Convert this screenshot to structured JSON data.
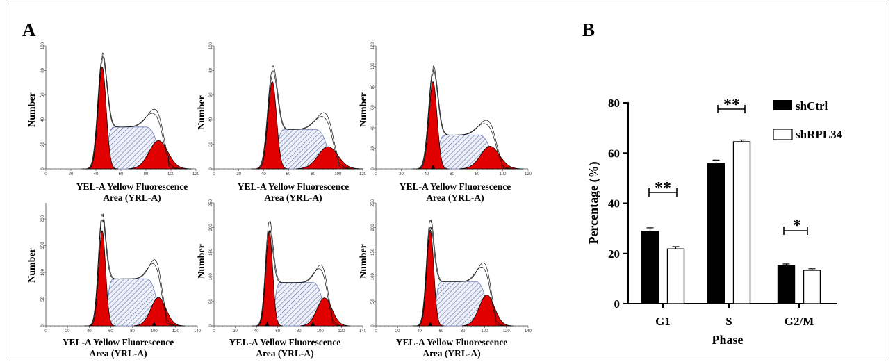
{
  "panel_a": {
    "label": "A",
    "ylabel": "Number",
    "xlabel_line1": "YEL-A Yellow Fluorescence",
    "xlabel_line2": "Area (YRL-A)",
    "histograms": [
      {
        "yticks": [
          "0",
          "20",
          "40",
          "60",
          "80",
          "100"
        ],
        "ymax": 100,
        "xticks": [
          "0",
          "20",
          "40",
          "60",
          "80",
          "100",
          "120"
        ],
        "xmax": 120,
        "g1": {
          "mu": 45,
          "sigma": 3.2,
          "h": 83
        },
        "g2": {
          "mu": 90,
          "sigma": 7.5,
          "h": 23
        },
        "s": {
          "from": 48,
          "to": 92,
          "h": 34
        },
        "traces": [
          {
            "peak": 97
          },
          {
            "peak": 100
          }
        ],
        "markers": []
      },
      {
        "yticks": [
          "0",
          "20",
          "40",
          "60",
          "80",
          "100"
        ],
        "ymax": 100,
        "xticks": [
          "0",
          "20",
          "40",
          "60",
          "80",
          "100",
          "120"
        ],
        "xmax": 120,
        "g1": {
          "mu": 47,
          "sigma": 3.4,
          "h": 71
        },
        "g2": {
          "mu": 92,
          "sigma": 8,
          "h": 18
        },
        "s": {
          "from": 50,
          "to": 94,
          "h": 32
        },
        "traces": [
          {
            "peak": 85
          },
          {
            "peak": 89
          }
        ],
        "markers": []
      },
      {
        "yticks": [
          "0",
          "20",
          "40",
          "60",
          "80",
          "100",
          "120"
        ],
        "ymax": 120,
        "xticks": [
          "0",
          "20",
          "40",
          "60",
          "80",
          "100",
          "120"
        ],
        "xmax": 120,
        "g1": {
          "mu": 45,
          "sigma": 3.2,
          "h": 85
        },
        "g2": {
          "mu": 90,
          "sigma": 7.5,
          "h": 22
        },
        "s": {
          "from": 48,
          "to": 93,
          "h": 33
        },
        "traces": [
          {
            "peak": 102
          },
          {
            "peak": 106
          }
        ],
        "markers": [
          {
            "x": 45
          }
        ]
      },
      {
        "yticks": [
          "0",
          "50",
          "100",
          "150",
          "200"
        ],
        "ymax": 230,
        "xticks": [
          "0",
          "20",
          "40",
          "60",
          "80",
          "100",
          "120",
          "140"
        ],
        "xmax": 140,
        "g1": {
          "mu": 52,
          "sigma": 3.2,
          "h": 178
        },
        "g2": {
          "mu": 104,
          "sigma": 7,
          "h": 53
        },
        "s": {
          "from": 56,
          "to": 105,
          "h": 88
        },
        "traces": [
          {
            "peak": 225
          },
          {
            "peak": 235
          }
        ],
        "markers": [
          {
            "x": 100
          }
        ]
      },
      {
        "yticks": [
          "0",
          "50",
          "100",
          "150",
          "200",
          "250"
        ],
        "ymax": 250,
        "xticks": [
          "0",
          "20",
          "40",
          "60",
          "80",
          "100",
          "120",
          "140"
        ],
        "xmax": 140,
        "g1": {
          "mu": 52,
          "sigma": 3.2,
          "h": 192
        },
        "g2": {
          "mu": 104,
          "sigma": 7,
          "h": 57
        },
        "s": {
          "from": 56,
          "to": 105,
          "h": 88
        },
        "traces": [
          {
            "peak": 220
          },
          {
            "peak": 238
          }
        ],
        "markers": [
          {
            "x": 50
          },
          {
            "x": 93
          }
        ]
      },
      {
        "yticks": [
          "0",
          "50",
          "100",
          "150",
          "200",
          "250"
        ],
        "ymax": 250,
        "xticks": [
          "0",
          "20",
          "40",
          "60",
          "80",
          "100",
          "120",
          "140"
        ],
        "xmax": 140,
        "g1": {
          "mu": 50,
          "sigma": 3.2,
          "h": 195
        },
        "g2": {
          "mu": 102,
          "sigma": 7,
          "h": 63
        },
        "s": {
          "from": 54,
          "to": 104,
          "h": 90
        },
        "traces": [
          {
            "peak": 228
          },
          {
            "peak": 242
          }
        ],
        "markers": [
          {
            "x": 50
          }
        ]
      }
    ]
  },
  "panel_b": {
    "label": "B",
    "star_g1": "**",
    "star_s": "**",
    "star_g2m": "*"
  },
  "colors": {
    "g1_fill": "#e00000",
    "s_hatch": "#6b7ab8",
    "bar_shctrl": "#000000",
    "bar_shrpl34": "#ffffff"
  },
  "chart_data": {
    "type": "bar",
    "title": "",
    "xlabel": "Phase",
    "ylabel": "Percentage (%)",
    "categories": [
      "G1",
      "S",
      "G2/M"
    ],
    "series": [
      {
        "name": "shCtrl",
        "values": [
          28.8,
          55.8,
          15.2
        ],
        "errors": [
          1.4,
          1.4,
          0.6
        ]
      },
      {
        "name": "shRPL34",
        "values": [
          21.8,
          64.5,
          13.3
        ],
        "errors": [
          0.9,
          0.7,
          0.6
        ]
      }
    ],
    "ylim": [
      0,
      80
    ],
    "yticks": [
      "0",
      "20",
      "40",
      "60",
      "80"
    ],
    "legend_position": "top-right",
    "grid": false
  }
}
